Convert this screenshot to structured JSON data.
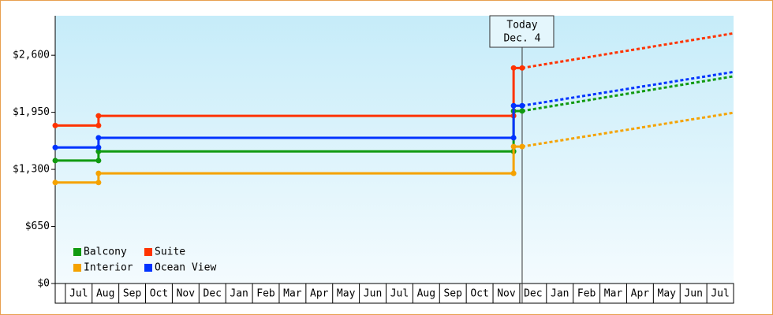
{
  "chart_data": {
    "type": "line",
    "categories": [
      "Jul",
      "Aug",
      "Sep",
      "Oct",
      "Nov",
      "Dec",
      "Jan",
      "Feb",
      "Mar",
      "Apr",
      "May",
      "Jun",
      "Jul",
      "Aug",
      "Sep",
      "Oct",
      "Nov",
      "Dec",
      "Jan",
      "Feb",
      "Mar",
      "Apr",
      "May",
      "Jun",
      "Jul"
    ],
    "x": [
      -0.38,
      1.24,
      1.24,
      16.77,
      16.77,
      17.09
    ],
    "forecast_x": [
      17.09,
      25
    ],
    "xlim": [
      -0.38,
      25
    ],
    "ylim": [
      0,
      3050
    ],
    "yticks": [
      {
        "value": 0,
        "label": "$0"
      },
      {
        "value": 650,
        "label": "$650"
      },
      {
        "value": 1300,
        "label": "$1,300"
      },
      {
        "value": 1950,
        "label": "$1,950"
      },
      {
        "value": 2600,
        "label": "$2,600"
      }
    ],
    "annotation": [
      "Today",
      "Dec. 4"
    ],
    "series": [
      {
        "name": "Balcony",
        "color": "#109a10",
        "values": [
          1400,
          1400,
          1505,
          1505,
          1965,
          1965
        ],
        "forecast": [
          1965,
          2360
        ]
      },
      {
        "name": "Suite",
        "color": "#ff3300",
        "values": [
          1800,
          1800,
          1910,
          1910,
          2455,
          2455
        ],
        "forecast": [
          2455,
          2850
        ]
      },
      {
        "name": "Interior",
        "color": "#f5a200",
        "values": [
          1150,
          1150,
          1255,
          1255,
          1560,
          1560
        ],
        "forecast": [
          1560,
          1945
        ]
      },
      {
        "name": "Ocean View",
        "color": "#0033ff",
        "values": [
          1550,
          1550,
          1660,
          1660,
          2025,
          2025
        ],
        "forecast": [
          2025,
          2410
        ]
      }
    ],
    "legend": "lower left"
  }
}
